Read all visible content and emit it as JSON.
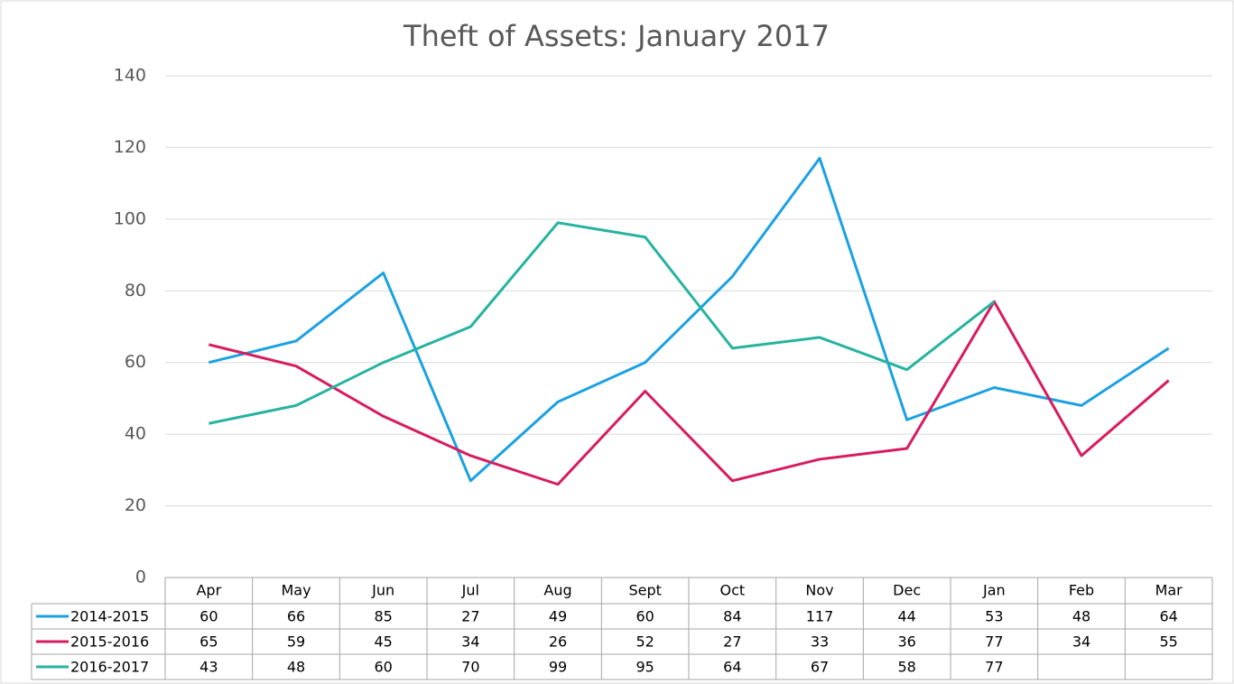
{
  "chart_data": {
    "type": "line",
    "title": "Theft of Assets: January 2017",
    "categories": [
      "Apr",
      "May",
      "Jun",
      "Jul",
      "Aug",
      "Sept",
      "Oct",
      "Nov",
      "Dec",
      "Jan",
      "Feb",
      "Mar"
    ],
    "series": [
      {
        "name": "2014-2015",
        "color": "#1ba1e2",
        "values": [
          60,
          66,
          85,
          27,
          49,
          60,
          84,
          117,
          44,
          53,
          48,
          64
        ]
      },
      {
        "name": "2015-2016",
        "color": "#d81b60",
        "values": [
          65,
          59,
          45,
          34,
          26,
          52,
          27,
          33,
          36,
          77,
          34,
          55
        ]
      },
      {
        "name": "2016-2017",
        "color": "#26b3a0",
        "values": [
          43,
          48,
          60,
          70,
          99,
          95,
          64,
          67,
          58,
          77,
          null,
          null
        ]
      }
    ],
    "ylim": [
      0,
      140
    ],
    "yticks": [
      0,
      20,
      40,
      60,
      80,
      100,
      120,
      140
    ],
    "grid": true,
    "data_table": true
  }
}
